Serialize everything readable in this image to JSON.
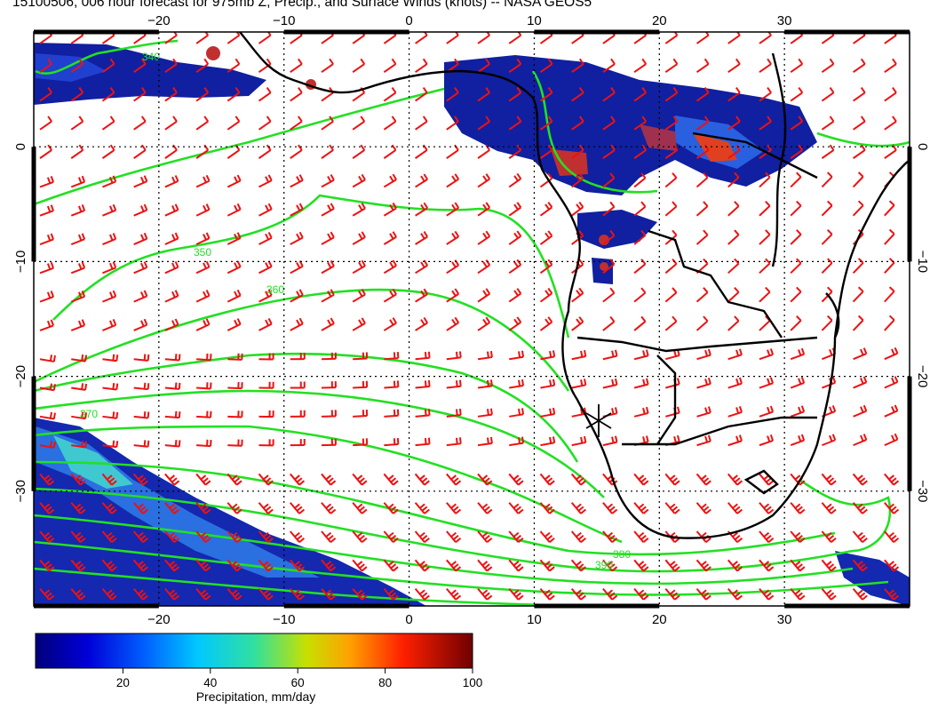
{
  "title": "15100506, 006 hour forecast for 975mb Z, Precip., and Surface Winds (knots) -- NASA GEOS5",
  "map": {
    "lon_range": [
      -30,
      40
    ],
    "lat_range": [
      -40,
      10
    ],
    "lon_ticks": [
      -20,
      -10,
      0,
      10,
      20,
      30
    ],
    "lat_ticks": [
      0,
      -10,
      -20,
      -30
    ],
    "lon_tick_labels": [
      "−20",
      "−10",
      "0",
      "10",
      "20",
      "30"
    ],
    "lat_tick_labels": [
      "0",
      "−10",
      "−20",
      "−30"
    ],
    "grid": true,
    "colors": {
      "contours": "#22e022",
      "wind_barbs": "#ee1111",
      "coastlines": "#000000",
      "precip_low": "#101090",
      "precip_high": "#800000"
    },
    "contour_levels": [
      "340",
      "350",
      "360",
      "370",
      "380",
      "390"
    ],
    "station_marker": {
      "lon": 15,
      "lat": -23.5
    }
  },
  "colorbar": {
    "label": "Precipitation, mm/day",
    "ticks": [
      "20",
      "40",
      "60",
      "80",
      "100"
    ],
    "range": [
      0,
      100
    ]
  }
}
